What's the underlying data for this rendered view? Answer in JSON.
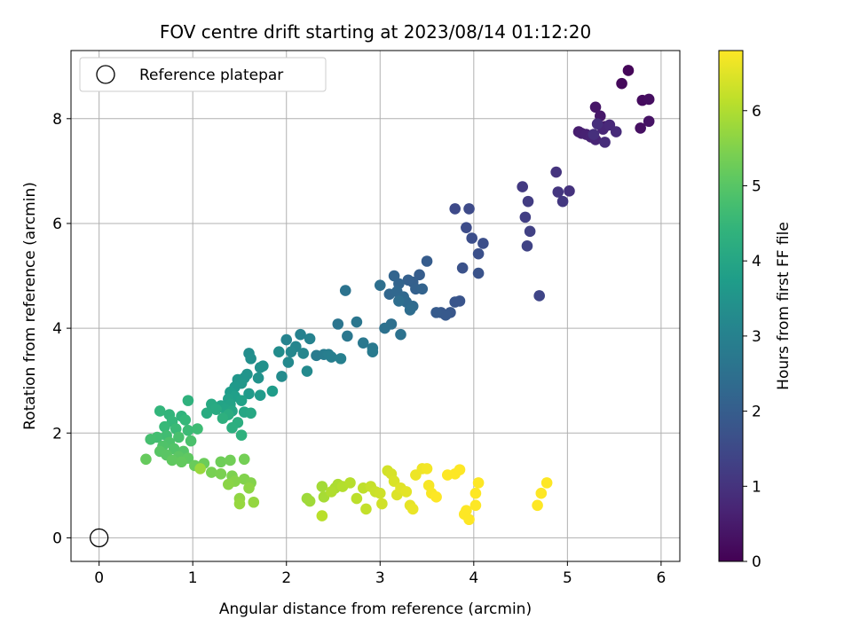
{
  "chart_data": {
    "type": "scatter",
    "title": "FOV centre drift starting at 2023/08/14 01:12:20",
    "xlabel": "Angular distance from reference (arcmin)",
    "ylabel": "Rotation from reference (arcmin)",
    "xlim": [
      -0.3,
      6.2
    ],
    "ylim": [
      -0.45,
      9.3
    ],
    "xticks": [
      0,
      1,
      2,
      3,
      4,
      5,
      6
    ],
    "yticks": [
      0,
      2,
      4,
      6,
      8
    ],
    "grid": true,
    "legend": {
      "position": "top-left",
      "entries": [
        "Reference platepar"
      ]
    },
    "reference_point": {
      "x": 0,
      "y": 0,
      "label": "Reference platepar"
    },
    "colorbar": {
      "label": "Hours from first FF file",
      "range": [
        0,
        6.8
      ],
      "ticks": [
        0,
        1,
        2,
        3,
        4,
        5,
        6
      ],
      "colormap": "viridis"
    },
    "points": [
      [
        5.65,
        8.92,
        0.1
      ],
      [
        5.58,
        8.67,
        0.15
      ],
      [
        5.8,
        8.35,
        0.2
      ],
      [
        5.87,
        8.37,
        0.25
      ],
      [
        5.78,
        7.82,
        0.3
      ],
      [
        5.87,
        7.95,
        0.35
      ],
      [
        5.3,
        8.22,
        0.4
      ],
      [
        5.35,
        8.05,
        0.45
      ],
      [
        5.4,
        7.85,
        0.5
      ],
      [
        5.12,
        7.75,
        0.55
      ],
      [
        5.15,
        7.72,
        0.58
      ],
      [
        5.2,
        7.7,
        0.62
      ],
      [
        5.25,
        7.65,
        0.66
      ],
      [
        5.3,
        7.6,
        0.7
      ],
      [
        5.38,
        7.8,
        0.74
      ],
      [
        5.45,
        7.88,
        0.78
      ],
      [
        5.52,
        7.75,
        0.82
      ],
      [
        5.4,
        7.55,
        0.86
      ],
      [
        5.32,
        7.9,
        0.9
      ],
      [
        5.28,
        7.7,
        0.94
      ],
      [
        5.02,
        6.62,
        0.98
      ],
      [
        4.88,
        6.98,
        1.02
      ],
      [
        4.9,
        6.6,
        1.06
      ],
      [
        4.95,
        6.42,
        1.1
      ],
      [
        4.52,
        6.7,
        1.15
      ],
      [
        4.58,
        6.42,
        1.2
      ],
      [
        4.55,
        6.12,
        1.25
      ],
      [
        4.6,
        5.85,
        1.3
      ],
      [
        4.57,
        5.57,
        1.35
      ],
      [
        4.7,
        4.62,
        1.4
      ],
      [
        3.8,
        6.28,
        1.5
      ],
      [
        3.95,
        6.28,
        1.53
      ],
      [
        3.92,
        5.92,
        1.56
      ],
      [
        3.98,
        5.72,
        1.6
      ],
      [
        4.1,
        5.62,
        1.63
      ],
      [
        4.05,
        5.42,
        1.66
      ],
      [
        3.88,
        5.15,
        1.7
      ],
      [
        4.05,
        5.05,
        1.73
      ],
      [
        3.85,
        4.52,
        1.76
      ],
      [
        3.8,
        4.5,
        1.8
      ],
      [
        3.75,
        4.3,
        1.83
      ],
      [
        3.65,
        4.3,
        1.86
      ],
      [
        3.7,
        4.25,
        1.9
      ],
      [
        3.6,
        4.3,
        1.93
      ],
      [
        3.5,
        5.28,
        1.96
      ],
      [
        3.42,
        5.02,
        2.0
      ],
      [
        3.35,
        4.88,
        2.03
      ],
      [
        3.3,
        4.92,
        2.06
      ],
      [
        3.38,
        4.75,
        2.1
      ],
      [
        3.45,
        4.75,
        2.13
      ],
      [
        3.2,
        4.85,
        2.16
      ],
      [
        3.15,
        5.0,
        2.2
      ],
      [
        3.1,
        4.65,
        2.23
      ],
      [
        3.18,
        4.7,
        2.26
      ],
      [
        3.25,
        4.6,
        2.3
      ],
      [
        3.28,
        4.5,
        2.33
      ],
      [
        3.35,
        4.42,
        2.36
      ],
      [
        3.32,
        4.35,
        2.4
      ],
      [
        3.2,
        4.52,
        2.43
      ],
      [
        3.0,
        4.82,
        2.46
      ],
      [
        3.12,
        4.08,
        2.5
      ],
      [
        3.05,
        4.0,
        2.53
      ],
      [
        3.22,
        3.88,
        2.56
      ],
      [
        2.63,
        4.72,
        2.6
      ],
      [
        2.55,
        4.08,
        2.63
      ],
      [
        2.75,
        4.12,
        2.66
      ],
      [
        2.65,
        3.85,
        2.7
      ],
      [
        2.82,
        3.72,
        2.73
      ],
      [
        2.92,
        3.62,
        2.76
      ],
      [
        2.92,
        3.55,
        2.8
      ],
      [
        2.32,
        3.48,
        2.83
      ],
      [
        2.4,
        3.5,
        2.86
      ],
      [
        2.45,
        3.5,
        2.9
      ],
      [
        2.48,
        3.45,
        2.93
      ],
      [
        2.58,
        3.42,
        2.96
      ],
      [
        2.15,
        3.88,
        3.0
      ],
      [
        2.25,
        3.8,
        3.03
      ],
      [
        2.0,
        3.78,
        3.06
      ],
      [
        2.1,
        3.65,
        3.1
      ],
      [
        2.18,
        3.52,
        3.13
      ],
      [
        2.05,
        3.55,
        3.16
      ],
      [
        2.02,
        3.35,
        3.2
      ],
      [
        2.22,
        3.18,
        3.23
      ],
      [
        1.95,
        3.08,
        3.26
      ],
      [
        1.92,
        3.55,
        3.3
      ],
      [
        1.6,
        3.52,
        3.33
      ],
      [
        1.62,
        3.42,
        3.36
      ],
      [
        1.72,
        3.25,
        3.4
      ],
      [
        1.75,
        3.28,
        3.43
      ],
      [
        1.7,
        3.05,
        3.46
      ],
      [
        1.58,
        3.12,
        3.5
      ],
      [
        1.55,
        3.05,
        3.53
      ],
      [
        1.48,
        3.02,
        3.56
      ],
      [
        1.52,
        2.95,
        3.6
      ],
      [
        1.45,
        2.88,
        3.63
      ],
      [
        1.6,
        2.75,
        3.66
      ],
      [
        1.72,
        2.72,
        3.7
      ],
      [
        1.85,
        2.8,
        3.73
      ],
      [
        1.4,
        2.78,
        3.76
      ],
      [
        1.45,
        2.7,
        3.8
      ],
      [
        1.38,
        2.65,
        3.83
      ],
      [
        1.52,
        2.62,
        3.86
      ],
      [
        1.4,
        2.55,
        3.9
      ],
      [
        1.3,
        2.52,
        3.93
      ],
      [
        1.35,
        2.45,
        3.96
      ],
      [
        1.42,
        2.42,
        4.0
      ],
      [
        1.55,
        2.4,
        4.03
      ],
      [
        1.62,
        2.38,
        4.06
      ],
      [
        1.2,
        2.55,
        4.1
      ],
      [
        1.25,
        2.45,
        4.13
      ],
      [
        1.15,
        2.38,
        4.16
      ],
      [
        1.38,
        2.35,
        4.2
      ],
      [
        1.48,
        2.2,
        4.23
      ],
      [
        1.42,
        2.1,
        4.26
      ],
      [
        1.32,
        2.28,
        4.3
      ],
      [
        1.52,
        1.96,
        4.33
      ],
      [
        0.95,
        2.62,
        4.36
      ],
      [
        0.88,
        2.32,
        4.4
      ],
      [
        0.75,
        2.35,
        4.43
      ],
      [
        0.65,
        2.42,
        4.46
      ],
      [
        0.78,
        2.22,
        4.5
      ],
      [
        0.92,
        2.25,
        4.53
      ],
      [
        0.7,
        2.12,
        4.56
      ],
      [
        0.82,
        2.08,
        4.6
      ],
      [
        0.95,
        2.05,
        4.63
      ],
      [
        1.05,
        2.08,
        4.66
      ],
      [
        0.72,
        1.95,
        4.7
      ],
      [
        0.62,
        1.92,
        4.73
      ],
      [
        0.55,
        1.88,
        4.76
      ],
      [
        0.85,
        1.92,
        4.8
      ],
      [
        0.98,
        1.85,
        4.83
      ],
      [
        0.75,
        1.82,
        4.86
      ],
      [
        0.68,
        1.75,
        4.9
      ],
      [
        0.8,
        1.7,
        4.93
      ],
      [
        0.9,
        1.65,
        4.96
      ],
      [
        0.65,
        1.65,
        5.0
      ],
      [
        0.72,
        1.58,
        5.03
      ],
      [
        0.85,
        1.55,
        5.06
      ],
      [
        0.95,
        1.52,
        5.1
      ],
      [
        0.78,
        1.48,
        5.13
      ],
      [
        0.88,
        1.45,
        5.16
      ],
      [
        0.5,
        1.5,
        5.2
      ],
      [
        1.02,
        1.38,
        5.23
      ],
      [
        1.12,
        1.42,
        5.26
      ],
      [
        1.3,
        1.45,
        5.3
      ],
      [
        1.4,
        1.48,
        5.33
      ],
      [
        1.55,
        1.5,
        5.36
      ],
      [
        1.2,
        1.25,
        5.4
      ],
      [
        1.3,
        1.22,
        5.43
      ],
      [
        1.42,
        1.18,
        5.46
      ],
      [
        1.55,
        1.12,
        5.5
      ],
      [
        1.62,
        1.05,
        5.53
      ],
      [
        1.45,
        1.08,
        5.56
      ],
      [
        1.38,
        1.02,
        5.6
      ],
      [
        1.6,
        0.95,
        5.63
      ],
      [
        1.5,
        0.75,
        5.66
      ],
      [
        1.65,
        0.68,
        5.7
      ],
      [
        1.5,
        0.65,
        5.73
      ],
      [
        1.08,
        1.32,
        5.76
      ],
      [
        2.22,
        0.75,
        5.8
      ],
      [
        2.25,
        0.7,
        5.83
      ],
      [
        2.38,
        0.98,
        5.86
      ],
      [
        2.4,
        0.78,
        5.9
      ],
      [
        2.52,
        0.95,
        5.93
      ],
      [
        2.55,
        1.02,
        5.96
      ],
      [
        2.48,
        0.88,
        6.0
      ],
      [
        2.6,
        0.98,
        6.03
      ],
      [
        2.68,
        1.05,
        6.06
      ],
      [
        2.38,
        0.42,
        6.1
      ],
      [
        2.75,
        0.75,
        6.13
      ],
      [
        2.82,
        0.95,
        6.16
      ],
      [
        2.85,
        0.55,
        6.2
      ],
      [
        2.9,
        0.98,
        6.23
      ],
      [
        2.95,
        0.88,
        6.26
      ],
      [
        3.0,
        0.85,
        6.3
      ],
      [
        3.02,
        0.65,
        6.33
      ],
      [
        3.08,
        1.28,
        6.36
      ],
      [
        3.12,
        1.22,
        6.4
      ],
      [
        3.15,
        1.08,
        6.43
      ],
      [
        3.18,
        0.82,
        6.46
      ],
      [
        3.22,
        0.95,
        6.5
      ],
      [
        3.28,
        0.88,
        6.53
      ],
      [
        3.32,
        0.62,
        6.56
      ],
      [
        3.35,
        0.55,
        6.6
      ],
      [
        3.38,
        1.2,
        6.63
      ],
      [
        3.45,
        1.32,
        6.66
      ],
      [
        3.5,
        1.32,
        6.7
      ],
      [
        3.52,
        1.0,
        6.73
      ],
      [
        3.55,
        0.85,
        6.76
      ],
      [
        3.6,
        0.78,
        6.8
      ],
      [
        3.72,
        1.2,
        6.8
      ],
      [
        3.8,
        1.22,
        6.8
      ],
      [
        3.85,
        1.3,
        6.8
      ],
      [
        3.9,
        0.45,
        6.8
      ],
      [
        3.92,
        0.52,
        6.8
      ],
      [
        3.95,
        0.35,
        6.8
      ],
      [
        4.02,
        0.62,
        6.8
      ],
      [
        4.05,
        1.05,
        6.8
      ],
      [
        4.02,
        0.85,
        6.8
      ],
      [
        4.68,
        0.62,
        6.8
      ],
      [
        4.72,
        0.85,
        6.8
      ],
      [
        4.78,
        1.05,
        6.8
      ]
    ]
  }
}
